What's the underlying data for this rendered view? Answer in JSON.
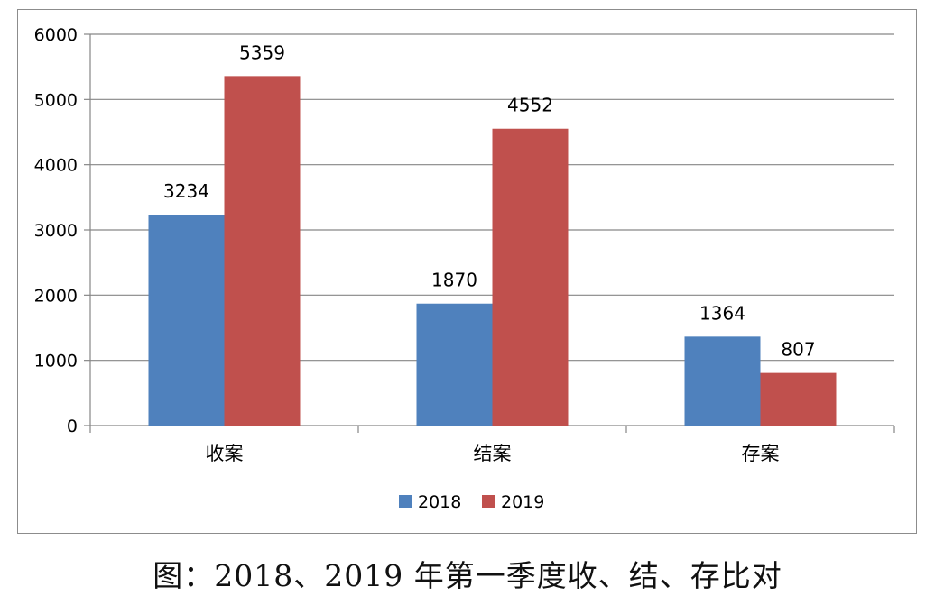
{
  "chart_data": {
    "type": "bar",
    "categories": [
      "收案",
      "结案",
      "存案"
    ],
    "series": [
      {
        "name": "2018",
        "values": [
          3234,
          1870,
          1364
        ],
        "color": "#4f81bd"
      },
      {
        "name": "2019",
        "values": [
          5359,
          4552,
          807
        ],
        "color": "#c0504d"
      }
    ],
    "ylim": [
      0,
      6000
    ],
    "yticks": [
      0,
      1000,
      2000,
      3000,
      4000,
      5000,
      6000
    ],
    "data_labels": true,
    "grid": true,
    "legend": "bottom",
    "axis_color": "#868686",
    "grid_color": "#868686"
  },
  "caption": "图：2018、2019 年第一季度收、结、存比对"
}
